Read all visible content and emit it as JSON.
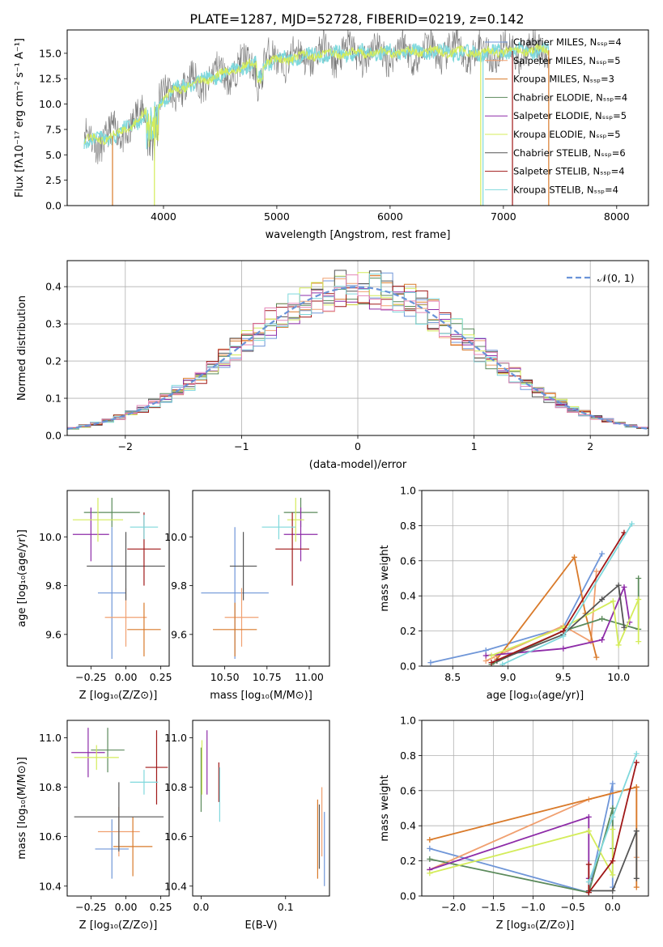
{
  "figure": {
    "title": "PLATE=1287, MJD=52728, FIBERID=0219, z=0.142",
    "colors": {
      "Chabrier MILES": "#6f96d8",
      "Salpeter MILES": "#f0a070",
      "Kroupa MILES": "#d97a2a",
      "Chabrier ELODIE": "#5b8a5b",
      "Salpeter ELODIE": "#8e2ca8",
      "Kroupa ELODIE": "#d4ec5a",
      "Chabrier STELIB": "#555555",
      "Salpeter STELIB": "#a01818",
      "Kroupa STELIB": "#7fd8dc",
      "Pink": "#e486b8",
      "Data": "#777777"
    }
  },
  "chart_data": [
    {
      "id": "spectrum",
      "type": "line",
      "title": "PLATE=1287, MJD=52728, FIBERID=0219, z=0.142",
      "xlabel": "wavelength [Angstrom, rest frame]",
      "ylabel": "Flux [fλ10⁻¹⁷ erg cm⁻² s⁻¹ A⁻¹]",
      "xlim": [
        3150,
        8280
      ],
      "ylim": [
        0,
        17.3
      ],
      "xticks": [
        "4000",
        "5000",
        "6000",
        "7000",
        "8000"
      ],
      "yticks": [
        "0.0",
        "2.5",
        "5.0",
        "7.5",
        "10.0",
        "12.5",
        "15.0"
      ],
      "legend_location": "top-right",
      "legend": [
        "Chabrier MILES, Nₛₛₚ=4",
        "Salpeter MILES, Nₛₛₚ=5",
        "Kroupa MILES, Nₛₛₚ=3",
        "Chabrier ELODIE, Nₛₛₚ=4",
        "Salpeter ELODIE, Nₛₛₚ=5",
        "Kroupa ELODIE, Nₛₛₚ=5",
        "Chabrier STELIB, Nₛₛₚ=6",
        "Salpeter STELIB, Nₛₛₚ=4",
        "Kroupa STELIB, Nₛₛₚ=4"
      ],
      "continuum": {
        "x": [
          3300,
          3500,
          3700,
          3900,
          4100,
          4300,
          4500,
          4700,
          5000,
          5300,
          5600,
          6000,
          6400,
          6800,
          7000,
          7200,
          7400
        ],
        "y": [
          6.5,
          6.6,
          7.7,
          9.6,
          11.4,
          12.2,
          12.9,
          13.7,
          14.3,
          14.8,
          15.0,
          15.1,
          15.2,
          15.1,
          15.2,
          15.3,
          15.3
        ]
      },
      "dips": [
        {
          "x": 3550,
          "y": 0
        },
        {
          "x": 3920,
          "y": 0
        },
        {
          "x": 6800,
          "y": 0
        },
        {
          "x": 6820,
          "y": 0
        },
        {
          "x": 7080,
          "y": 0
        },
        {
          "x": 7400,
          "y": 0
        }
      ]
    },
    {
      "id": "residuals",
      "type": "line",
      "xlabel": "(data-model)/error",
      "ylabel": "Normed distribution",
      "xlim": [
        -2.5,
        2.5
      ],
      "ylim": [
        0,
        0.47
      ],
      "xticks": [
        "−2",
        "−1",
        "0",
        "1",
        "2"
      ],
      "yticks": [
        "0.0",
        "0.1",
        "0.2",
        "0.3",
        "0.4"
      ],
      "grid": true,
      "legend_location": "top-right",
      "legend": [
        "𝒩(0, 1)"
      ],
      "gaussian": {
        "mean": 0,
        "sigma": 1
      }
    },
    {
      "id": "age-vs-z",
      "type": "scatter",
      "xlabel": "Z [log₁₀(Z/Z⊙)]",
      "ylabel": "age  [log₁₀(age/yr)]",
      "xlim": [
        -0.42,
        0.31
      ],
      "ylim": [
        9.47,
        10.19
      ],
      "xticks": [
        "−0.25",
        "0.00",
        "0.25"
      ],
      "yticks": [
        "9.6",
        "9.8",
        "10.0"
      ],
      "points": [
        {
          "s": "Chabrier MILES",
          "x": -0.1,
          "xe": 0.1,
          "y": 9.77,
          "ye": 0.27
        },
        {
          "s": "Salpeter MILES",
          "x": 0.0,
          "xe": 0.15,
          "y": 9.67,
          "ye": 0.12
        },
        {
          "s": "Kroupa MILES",
          "x": 0.13,
          "xe": 0.12,
          "y": 9.62,
          "ye": 0.11
        },
        {
          "s": "Chabrier ELODIE",
          "x": -0.1,
          "xe": 0.2,
          "y": 10.1,
          "ye": 0.06
        },
        {
          "s": "Salpeter ELODIE",
          "x": -0.25,
          "xe": 0.13,
          "y": 10.01,
          "ye": 0.11
        },
        {
          "s": "Kroupa ELODIE",
          "x": -0.2,
          "xe": 0.18,
          "y": 10.07,
          "ye": 0.09
        },
        {
          "s": "Chabrier STELIB",
          "x": 0.0,
          "xe": 0.28,
          "y": 9.88,
          "ye": 0.14
        },
        {
          "s": "Salpeter STELIB",
          "x": 0.13,
          "xe": 0.12,
          "y": 9.95,
          "ye": 0.15
        },
        {
          "s": "Kroupa STELIB",
          "x": 0.13,
          "xe": 0.1,
          "y": 10.04,
          "ye": 0.05
        }
      ]
    },
    {
      "id": "age-vs-mass",
      "type": "scatter",
      "xlabel": "mass [log₁₀(M/M⊙)]",
      "xlim": [
        10.31,
        11.12
      ],
      "ylim": [
        9.47,
        10.19
      ],
      "xticks": [
        "10.50",
        "10.75",
        "11.00"
      ],
      "yticks": [
        "9.6",
        "9.8",
        "10.0"
      ],
      "points": [
        {
          "s": "Chabrier MILES",
          "x": 10.56,
          "xe": 0.2,
          "y": 9.77,
          "ye": 0.27
        },
        {
          "s": "Salpeter MILES",
          "x": 10.6,
          "xe": 0.1,
          "y": 9.67,
          "ye": 0.12
        },
        {
          "s": "Kroupa MILES",
          "x": 10.56,
          "xe": 0.13,
          "y": 9.62,
          "ye": 0.11
        },
        {
          "s": "Chabrier ELODIE",
          "x": 10.95,
          "xe": 0.1,
          "y": 10.1,
          "ye": 0.06
        },
        {
          "s": "Salpeter ELODIE",
          "x": 10.95,
          "xe": 0.1,
          "y": 10.01,
          "ye": 0.11
        },
        {
          "s": "Kroupa ELODIE",
          "x": 10.92,
          "xe": 0.05,
          "y": 10.07,
          "ye": 0.09
        },
        {
          "s": "Chabrier STELIB",
          "x": 10.61,
          "xe": 0.08,
          "y": 9.88,
          "ye": 0.14
        },
        {
          "s": "Salpeter STELIB",
          "x": 10.9,
          "xe": 0.1,
          "y": 9.95,
          "ye": 0.15
        },
        {
          "s": "Kroupa STELIB",
          "x": 10.82,
          "xe": 0.1,
          "y": 10.04,
          "ye": 0.05
        }
      ]
    },
    {
      "id": "weight-vs-age",
      "type": "line",
      "xlabel": "age  [log₁₀(age/yr)]",
      "ylabel": "mass weight",
      "xlim": [
        8.22,
        10.27
      ],
      "ylim": [
        0,
        1.0
      ],
      "xticks": [
        "8.5",
        "9.0",
        "9.5",
        "10.0"
      ],
      "yticks": [
        "0.0",
        "0.2",
        "0.4",
        "0.6",
        "0.8",
        "1.0"
      ],
      "grid": true,
      "series": [
        {
          "s": "Chabrier MILES",
          "x": [
            8.3,
            8.8,
            9.5,
            9.85
          ],
          "y": [
            0.02,
            0.09,
            0.22,
            0.64
          ]
        },
        {
          "s": "Salpeter MILES",
          "x": [
            8.8,
            9.5,
            9.75,
            9.8
          ],
          "y": [
            0.03,
            0.23,
            0.14,
            0.54
          ]
        },
        {
          "s": "Kroupa MILES",
          "x": [
            8.9,
            9.6,
            9.7,
            9.8
          ],
          "y": [
            0.04,
            0.62,
            0.3,
            0.05
          ]
        },
        {
          "s": "Chabrier ELODIE",
          "x": [
            8.85,
            9.5,
            9.85,
            10.18,
            10.18
          ],
          "y": [
            0.01,
            0.2,
            0.27,
            0.21,
            0.5
          ]
        },
        {
          "s": "Salpeter ELODIE",
          "x": [
            8.8,
            9.5,
            9.85,
            10.05,
            10.1
          ],
          "y": [
            0.06,
            0.1,
            0.15,
            0.45,
            0.25
          ]
        },
        {
          "s": "Kroupa ELODIE",
          "x": [
            8.85,
            9.5,
            9.95,
            10.0,
            10.18,
            10.18
          ],
          "y": [
            0.06,
            0.22,
            0.37,
            0.12,
            0.38,
            0.14
          ]
        },
        {
          "s": "Chabrier STELIB",
          "x": [
            8.9,
            9.5,
            9.85,
            10.0,
            10.05
          ],
          "y": [
            0.03,
            0.18,
            0.38,
            0.46,
            0.22
          ]
        },
        {
          "s": "Salpeter STELIB",
          "x": [
            8.85,
            9.5,
            10.05
          ],
          "y": [
            0.02,
            0.2,
            0.76
          ]
        },
        {
          "s": "Kroupa STELIB",
          "x": [
            8.95,
            9.5,
            10.12
          ],
          "y": [
            0.01,
            0.17,
            0.81
          ]
        }
      ]
    },
    {
      "id": "mass-vs-z",
      "type": "scatter",
      "xlabel": "Z [log₁₀(Z/Z⊙)]",
      "ylabel": "mass [log₁₀(M/M⊙)]",
      "xlim": [
        -0.42,
        0.31
      ],
      "ylim": [
        10.36,
        11.07
      ],
      "xticks": [
        "−0.25",
        "0.00",
        "0.25"
      ],
      "yticks": [
        "10.4",
        "10.6",
        "10.8",
        "11.0"
      ],
      "points": [
        {
          "s": "Chabrier MILES",
          "x": -0.1,
          "xe": 0.12,
          "y": 10.55,
          "ye": 0.12
        },
        {
          "s": "Salpeter MILES",
          "x": -0.05,
          "xe": 0.15,
          "y": 10.62,
          "ye": 0.1
        },
        {
          "s": "Kroupa MILES",
          "x": 0.05,
          "xe": 0.14,
          "y": 10.56,
          "ye": 0.12
        },
        {
          "s": "Chabrier ELODIE",
          "x": -0.13,
          "xe": 0.12,
          "y": 10.95,
          "ye": 0.09
        },
        {
          "s": "Salpeter ELODIE",
          "x": -0.27,
          "xe": 0.12,
          "y": 10.94,
          "ye": 0.1
        },
        {
          "s": "Kroupa ELODIE",
          "x": -0.21,
          "xe": 0.16,
          "y": 10.92,
          "ye": 0.05
        },
        {
          "s": "Chabrier STELIB",
          "x": -0.05,
          "xe": 0.32,
          "y": 10.68,
          "ye": 0.14
        },
        {
          "s": "Salpeter STELIB",
          "x": 0.22,
          "xe": 0.08,
          "y": 10.88,
          "ye": 0.15
        },
        {
          "s": "Kroupa STELIB",
          "x": 0.13,
          "xe": 0.1,
          "y": 10.82,
          "ye": 0.05
        }
      ]
    },
    {
      "id": "mass-vs-ebv",
      "type": "scatter",
      "xlabel": "E(B-V)",
      "xlim": [
        -0.01,
        0.152
      ],
      "ylim": [
        10.36,
        11.07
      ],
      "xticks": [
        "0.0",
        "0.1"
      ],
      "yticks": [
        "10.4",
        "10.6",
        "10.8",
        "11.0"
      ],
      "points": [
        {
          "s": "Chabrier MILES",
          "x": 0.146,
          "y": 10.55,
          "ye": 0.15
        },
        {
          "s": "Salpeter MILES",
          "x": 0.143,
          "y": 10.66,
          "ye": 0.14
        },
        {
          "s": "Kroupa MILES",
          "x": 0.138,
          "y": 10.59,
          "ye": 0.16
        },
        {
          "s": "Chabrier ELODIE",
          "x": 0.0,
          "y": 10.83,
          "ye": 0.13
        },
        {
          "s": "Salpeter ELODIE",
          "x": 0.007,
          "y": 10.9,
          "ye": 0.13
        },
        {
          "s": "Kroupa ELODIE",
          "x": 0.001,
          "y": 10.88,
          "ye": 0.11
        },
        {
          "s": "Chabrier STELIB",
          "x": 0.14,
          "y": 10.6,
          "ye": 0.13
        },
        {
          "s": "Salpeter STELIB",
          "x": 0.021,
          "y": 10.82,
          "ye": 0.08
        },
        {
          "s": "Kroupa STELIB",
          "x": 0.022,
          "y": 10.77,
          "ye": 0.11
        }
      ]
    },
    {
      "id": "weight-vs-z",
      "type": "line",
      "xlabel": "Z [log₁₀(Z/Z⊙)]",
      "ylabel": "mass weight",
      "xlim": [
        -2.4,
        0.45
      ],
      "ylim": [
        0,
        1.0
      ],
      "xticks": [
        "−2.0",
        "−1.5",
        "−1.0",
        "−0.5",
        "0.0"
      ],
      "yticks": [
        "0.0",
        "0.2",
        "0.4",
        "0.6",
        "0.8",
        "1.0"
      ],
      "grid": true,
      "series": [
        {
          "s": "Chabrier MILES",
          "x": [
            -2.3,
            -0.3,
            0.0,
            0.0
          ],
          "y": [
            0.27,
            0.02,
            0.64,
            0.05
          ]
        },
        {
          "s": "Salpeter MILES",
          "x": [
            -2.3,
            -0.3,
            0.3,
            0.3
          ],
          "y": [
            0.15,
            0.55,
            0.62,
            0.22
          ]
        },
        {
          "s": "Kroupa MILES",
          "x": [
            -2.3,
            0.3,
            0.3
          ],
          "y": [
            0.32,
            0.62,
            0.05
          ]
        },
        {
          "s": "Chabrier ELODIE",
          "x": [
            -2.3,
            -0.3,
            0.0,
            0.0
          ],
          "y": [
            0.21,
            0.02,
            0.5,
            0.27
          ]
        },
        {
          "s": "Salpeter ELODIE",
          "x": [
            -2.3,
            -0.3,
            -0.3
          ],
          "y": [
            0.15,
            0.45,
            0.1
          ]
        },
        {
          "s": "Kroupa ELODIE",
          "x": [
            -2.3,
            -0.3,
            0.0,
            0.0
          ],
          "y": [
            0.13,
            0.37,
            0.12,
            0.38
          ]
        },
        {
          "s": "Chabrier STELIB",
          "x": [
            -0.3,
            0.0,
            0.3,
            0.3
          ],
          "y": [
            0.03,
            0.03,
            0.37,
            0.1
          ]
        },
        {
          "s": "Salpeter STELIB",
          "x": [
            -0.3,
            -0.3,
            0.0,
            0.3
          ],
          "y": [
            0.18,
            0.02,
            0.2,
            0.76
          ]
        },
        {
          "s": "Kroupa STELIB",
          "x": [
            -0.3,
            0.0,
            0.3
          ],
          "y": [
            0.08,
            0.45,
            0.81
          ]
        }
      ]
    }
  ]
}
